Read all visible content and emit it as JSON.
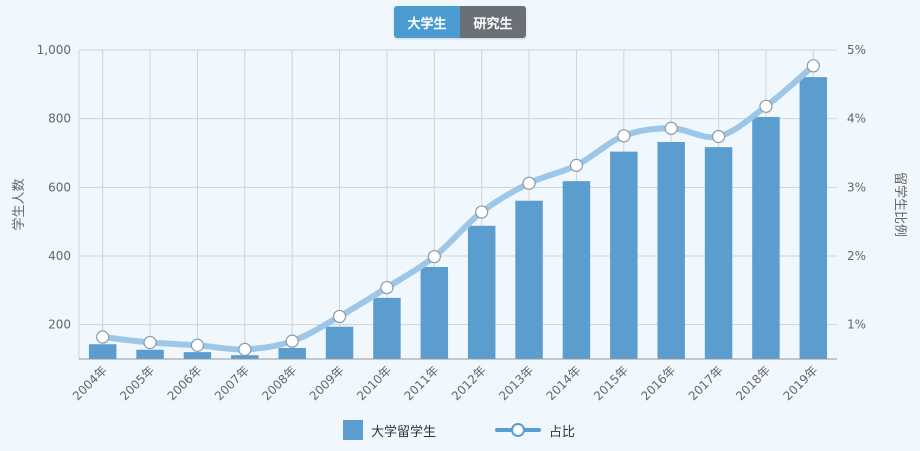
{
  "toggle": {
    "buttons": [
      {
        "label": "大学生",
        "active": true
      },
      {
        "label": "研究生",
        "active": false
      }
    ]
  },
  "colors": {
    "bar": "#5b9dcf",
    "line": "#9cc7e8",
    "active_button": "#4b9bd0",
    "inactive_button": "#6b6f78",
    "grid": "#cfd3d7",
    "axis_text": "#666666",
    "background": "#f0f8fe"
  },
  "legend": {
    "bar_label": "大学留学生",
    "line_label": "占比"
  },
  "chart_data": {
    "type": "bar",
    "categories": [
      "2004年",
      "2005年",
      "2006年",
      "2007年",
      "2008年",
      "2009年",
      "2010年",
      "2011年",
      "2012年",
      "2013年",
      "2014年",
      "2015年",
      "2016年",
      "2017年",
      "2018年",
      "2019年"
    ],
    "series": [
      {
        "name": "大学留学生",
        "type": "bar",
        "axis": "left",
        "values": [
          143,
          127,
          120,
          111,
          132,
          194,
          278,
          368,
          488,
          561,
          618,
          704,
          732,
          717,
          805,
          921
        ]
      },
      {
        "name": "占比",
        "type": "line",
        "axis": "right",
        "values": [
          0.82,
          0.74,
          0.7,
          0.64,
          0.76,
          1.12,
          1.54,
          1.99,
          2.64,
          3.06,
          3.32,
          3.75,
          3.86,
          3.74,
          4.18,
          4.77
        ]
      }
    ],
    "ylabel": "学生人数",
    "ylabel_right": "留学生比例",
    "ylim": [
      100,
      1000
    ],
    "yticks": [
      "200",
      "400",
      "600",
      "800",
      "1,000"
    ],
    "ytick_values": [
      200,
      400,
      600,
      800,
      1000
    ],
    "ylim_right": [
      0.5,
      5
    ],
    "yticks_right": [
      "1%",
      "2%",
      "3%",
      "4%",
      "5%"
    ],
    "ytick_values_right": [
      1,
      2,
      3,
      4,
      5
    ],
    "grid": true,
    "legend_position": "bottom"
  }
}
